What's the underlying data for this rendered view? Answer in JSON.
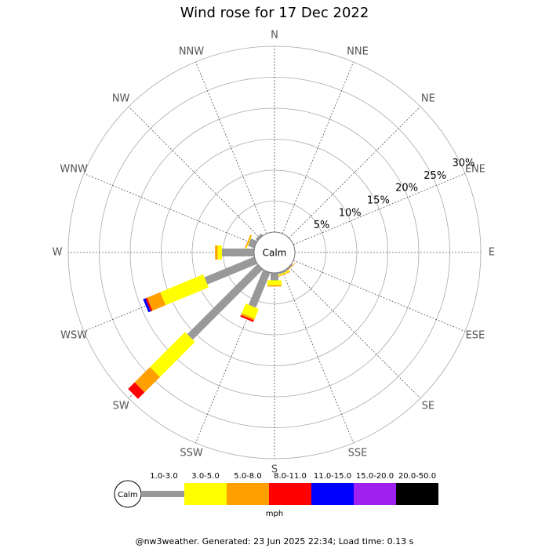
{
  "chart_data": {
    "type": "windrose",
    "title": "Wind rose for 17 Dec 2022",
    "categories": [
      "N",
      "NNE",
      "NE",
      "ENE",
      "E",
      "ESE",
      "SE",
      "SSE",
      "S",
      "SSW",
      "SW",
      "WSW",
      "W",
      "WNW",
      "NW",
      "NNW"
    ],
    "center_label": "Calm",
    "rlim": [
      0,
      30
    ],
    "rticks": [
      {
        "value": 5,
        "label": "5%"
      },
      {
        "value": 10,
        "label": "10%"
      },
      {
        "value": 15,
        "label": "15%"
      },
      {
        "value": 20,
        "label": "20%"
      },
      {
        "value": 25,
        "label": "25%"
      },
      {
        "value": 30,
        "label": "30%"
      }
    ],
    "series": [
      {
        "name": "1.0-3.0",
        "color": "#999999",
        "values": [
          0,
          0,
          0,
          0,
          0,
          0,
          0.2,
          0.3,
          1.2,
          6.1,
          16,
          8.7,
          5.2,
          1.1,
          0.4,
          0
        ]
      },
      {
        "name": "3.0-5.0",
        "color": "#ffff00",
        "values": [
          0,
          0,
          0,
          0,
          0,
          0,
          0,
          0.2,
          0.8,
          1.7,
          8,
          7.5,
          0.7,
          0.1,
          0,
          0
        ]
      },
      {
        "name": "5.0-8.0",
        "color": "#ff9f00",
        "values": [
          0,
          0,
          0,
          0,
          0,
          0,
          0.1,
          0.1,
          0.2,
          0.3,
          3.5,
          2.3,
          0.4,
          0.2,
          0,
          0
        ]
      },
      {
        "name": "8.0-11.0",
        "color": "#ff0000",
        "values": [
          0,
          0,
          0,
          0,
          0,
          0,
          0,
          0,
          0,
          0.3,
          1.5,
          0.3,
          0,
          0,
          0,
          0
        ]
      },
      {
        "name": "11.0-15.0",
        "color": "#0000ff",
        "values": [
          0,
          0,
          0,
          0,
          0,
          0,
          0,
          0,
          0,
          0,
          0,
          0.4,
          0,
          0,
          0,
          0
        ]
      },
      {
        "name": "15.0-20.0",
        "color": "#a020f0",
        "values": [
          0,
          0,
          0,
          0,
          0,
          0,
          0,
          0,
          0,
          0,
          0,
          0,
          0,
          0,
          0,
          0
        ]
      },
      {
        "name": "20.0-50.0",
        "color": "#000000",
        "values": [
          0,
          0,
          0,
          0,
          0,
          0,
          0,
          0,
          0,
          0,
          0,
          0,
          0,
          0,
          0,
          0
        ]
      }
    ],
    "legend_calm": "Calm",
    "legend_unit": "mph",
    "footer": "@nw3weather. Generated: 23 Jun 2025 22:34; Load time: 0.13 s"
  }
}
